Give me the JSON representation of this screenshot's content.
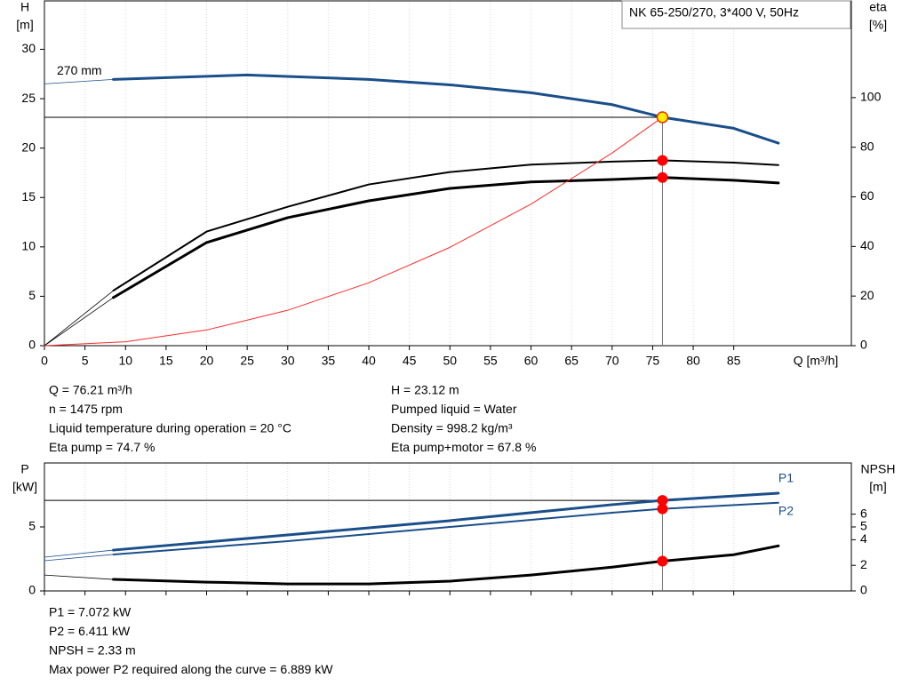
{
  "chart_data": [
    {
      "type": "line",
      "title": "NK 65-250/270, 3*400 V, 50Hz",
      "y_label": [
        "H",
        "[m]"
      ],
      "y2_label": [
        "eta",
        "[%]"
      ],
      "x_label": "Q [m³/h]",
      "xlim": [
        0,
        99.5
      ],
      "xticks": [
        0,
        5,
        10,
        15,
        20,
        25,
        30,
        35,
        40,
        45,
        50,
        55,
        60,
        65,
        70,
        75,
        80,
        85
      ],
      "xtick_labels": true,
      "ylim": [
        0,
        34.9
      ],
      "yticks": [
        0,
        5,
        10,
        15,
        20,
        25,
        30
      ],
      "y2lim": [
        0,
        139
      ],
      "y2ticks": [
        0,
        20,
        40,
        60,
        80,
        100
      ],
      "grid": true,
      "series": [
        {
          "name": "270 mm",
          "color": "#1a4f8a",
          "line_width": 3,
          "thin_start": true,
          "label_at": "start",
          "x": [
            0,
            8.5,
            25,
            40,
            50,
            60,
            70,
            76.21,
            85,
            90.5
          ],
          "values": [
            26.5,
            26.95,
            27.4,
            26.95,
            26.4,
            25.6,
            24.4,
            23.12,
            22.0,
            20.5
          ]
        },
        {
          "color": "#000000",
          "line_width": 2,
          "thin_start": true,
          "axis": "y2",
          "x": [
            0,
            8.5,
            20,
            30,
            40,
            50,
            60,
            70,
            76.21,
            85,
            90.5
          ],
          "values": [
            0,
            22.2,
            46,
            56,
            65,
            70,
            73,
            74.2,
            74.7,
            73.8,
            72.8
          ]
        },
        {
          "color": "#000000",
          "line_width": 3,
          "thin_start": true,
          "axis": "y2",
          "x": [
            0,
            8.5,
            20,
            30,
            40,
            50,
            60,
            70,
            76.21,
            85,
            90.5
          ],
          "values": [
            0,
            19.4,
            41.6,
            51.6,
            58.4,
            63.4,
            66,
            67,
            67.8,
            66.7,
            65.6
          ]
        },
        {
          "color": "#ff2a2a",
          "line_width": 1,
          "thin_start": false,
          "x": [
            0,
            10,
            20,
            30,
            40,
            50,
            60,
            70,
            76.21
          ],
          "values": [
            0,
            0.398,
            1.592,
            3.583,
            6.369,
            9.952,
            14.33,
            19.5,
            23.12
          ]
        }
      ],
      "points": [
        {
          "x": 76.21,
          "y": 23.12,
          "color": "#ffee00",
          "guide": true
        },
        {
          "x": 76.21,
          "y": 74.7,
          "color": "#ff0000",
          "axis": "y2"
        },
        {
          "x": 76.21,
          "y": 67.8,
          "color": "#ff0000",
          "axis": "y2"
        }
      ],
      "info": [
        [
          "Q = 76.21 m³/h",
          "n = 1475 rpm",
          "Liquid temperature during operation = 20 °C",
          "Eta pump = 74.7 %"
        ],
        [
          "H = 23.12 m",
          "Pumped liquid = Water",
          "Density = 998.2 kg/m³",
          "Eta pump+motor = 67.8 %"
        ]
      ]
    },
    {
      "type": "line",
      "y_label": [
        "P",
        "[kW]"
      ],
      "y2_label": [
        "NPSH",
        "[m]"
      ],
      "xlim": [
        0,
        99.5
      ],
      "xticks": [
        0,
        5,
        10,
        15,
        20,
        25,
        30,
        35,
        40,
        45,
        50,
        55,
        60,
        65,
        70,
        75,
        80,
        85
      ],
      "xtick_labels": false,
      "ylim": [
        0,
        10
      ],
      "yticks": [
        0,
        5
      ],
      "y2lim": [
        0,
        10
      ],
      "y2ticks": [
        0,
        2,
        4,
        5,
        6
      ],
      "grid": true,
      "series": [
        {
          "name": "P1",
          "color": "#1a4f8a",
          "line_width": 3,
          "thin_start": true,
          "label_at": "end",
          "label_side": "above",
          "x": [
            0,
            8.5,
            30,
            50,
            70,
            76.21,
            90.5
          ],
          "values": [
            2.64,
            3.19,
            4.375,
            5.49,
            6.74,
            7.072,
            7.64
          ]
        },
        {
          "name": "P2",
          "color": "#1a4f8a",
          "line_width": 2,
          "thin_start": true,
          "label_at": "end",
          "label_side": "below",
          "x": [
            0,
            8.5,
            30,
            50,
            70,
            76.21,
            90.5
          ],
          "values": [
            2.36,
            2.85,
            3.89,
            5.0,
            6.11,
            6.411,
            6.889
          ]
        },
        {
          "color": "#000000",
          "line_width": 3,
          "thin_start": true,
          "axis": "y2",
          "x": [
            0,
            8.5,
            20,
            30,
            40,
            50,
            60,
            70,
            76.21,
            85,
            90.5
          ],
          "values": [
            1.24,
            0.9,
            0.69,
            0.55,
            0.55,
            0.76,
            1.24,
            1.86,
            2.33,
            2.83,
            3.52
          ]
        }
      ],
      "points": [
        {
          "x": 76.21,
          "y": 7.072,
          "color": "#ff0000",
          "guide": true
        },
        {
          "x": 76.21,
          "y": 6.411,
          "color": "#ff0000"
        },
        {
          "x": 76.21,
          "y": 2.33,
          "color": "#ff0000",
          "axis": "y2"
        }
      ],
      "info": [
        [
          "P1 = 7.072 kW",
          "P2 = 6.411 kW",
          "NPSH = 2.33 m",
          "Max power P2 required along the curve = 6.889 kW"
        ]
      ]
    }
  ]
}
